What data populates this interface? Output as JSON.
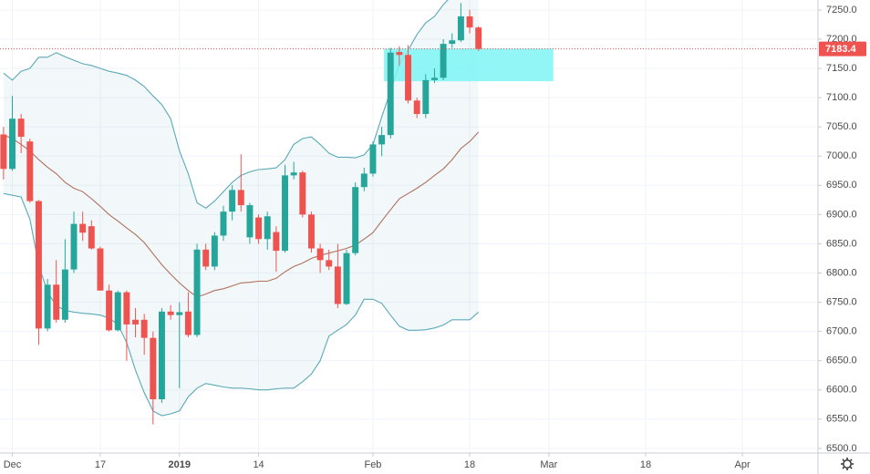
{
  "chart_data": {
    "type": "candlestick",
    "x": [
      0,
      1,
      2,
      3,
      4,
      5,
      6,
      7,
      8,
      9,
      10,
      11,
      12,
      13,
      14,
      15,
      16,
      17,
      18,
      19,
      20,
      21,
      22,
      23,
      24,
      25,
      26,
      27,
      28,
      29,
      30,
      31,
      32,
      33,
      34,
      35,
      36,
      37,
      38,
      39,
      40,
      41,
      42,
      43,
      44,
      45,
      46,
      47,
      48,
      49,
      50,
      51,
      52,
      53,
      54
    ],
    "open": [
      7037,
      6978,
      7064,
      7025,
      6923,
      6705,
      6780,
      6720,
      6806,
      6884,
      6880,
      6842,
      6770,
      6702,
      6767,
      6720,
      6720,
      6689,
      6584,
      6734,
      6728,
      6734,
      6694,
      6840,
      6811,
      6864,
      6905,
      6942,
      6861,
      6895,
      6858,
      6870,
      6838,
      6967,
      6972,
      6900,
      6842,
      6822,
      6811,
      6747,
      6834,
      6947,
      6970,
      7020,
      7036,
      7178,
      7173,
      7095,
      7072,
      7130,
      7134,
      7192,
      7198,
      7239,
      7220
    ],
    "high": [
      7050,
      7103,
      7072,
      7030,
      6925,
      6790,
      6822,
      6858,
      6905,
      6905,
      6890,
      6845,
      6780,
      6770,
      6770,
      6740,
      6730,
      6700,
      6740,
      6745,
      6750,
      6767,
      6850,
      6850,
      6870,
      6915,
      6950,
      7003,
      6920,
      6900,
      6905,
      6880,
      6985,
      6990,
      6975,
      6905,
      6850,
      6840,
      6850,
      6840,
      6955,
      6980,
      7025,
      7050,
      7185,
      7188,
      7190,
      7100,
      7140,
      7150,
      7200,
      7210,
      7262,
      7250,
      7222
    ],
    "low": [
      6960,
      6975,
      7005,
      6920,
      6677,
      6700,
      6715,
      6715,
      6800,
      6855,
      6840,
      6770,
      6700,
      6700,
      6650,
      6690,
      6660,
      6541,
      6578,
      6720,
      6603,
      6690,
      6690,
      6805,
      6805,
      6855,
      6890,
      6905,
      6850,
      6850,
      6840,
      6802,
      6835,
      6960,
      6895,
      6835,
      6800,
      6805,
      6740,
      6745,
      6830,
      6940,
      6965,
      7000,
      7030,
      7155,
      7090,
      7065,
      7065,
      7125,
      7130,
      7185,
      7195,
      7210,
      7180
    ],
    "close": [
      6978,
      7064,
      7033,
      6923,
      6705,
      6780,
      6720,
      6806,
      6884,
      6869,
      6842,
      6770,
      6702,
      6767,
      6712,
      6712,
      6689,
      6584,
      6734,
      6728,
      6733,
      6694,
      6840,
      6811,
      6864,
      6905,
      6942,
      6916,
      6916,
      6858,
      6897,
      6838,
      6967,
      6972,
      6900,
      6842,
      6822,
      6811,
      6747,
      6834,
      6947,
      6970,
      7020,
      7036,
      7177,
      7173,
      7095,
      7072,
      7130,
      7134,
      7192,
      7198,
      7239,
      7220,
      7183.4
    ],
    "up_color": "#26a69a",
    "down_color": "#ef5350",
    "bands": {
      "upper": [
        7142,
        7130,
        7145,
        7150,
        7169,
        7169,
        7177,
        7170,
        7164,
        7158,
        7155,
        7150,
        7145,
        7142,
        7138,
        7130,
        7119,
        7103,
        7088,
        7064,
        7009,
        6970,
        6920,
        6911,
        6923,
        6939,
        6955,
        6967,
        6973,
        6977,
        6978,
        6980,
        6994,
        7020,
        7030,
        7033,
        7020,
        7005,
        6998,
        6998,
        6997,
        7002,
        7020,
        7067,
        7111,
        7158,
        7181,
        7208,
        7228,
        7239,
        7259,
        7275,
        7291,
        7302,
        7311
      ],
      "middle": [
        7036,
        7030,
        7020,
        7009,
        6994,
        6981,
        6970,
        6955,
        6945,
        6939,
        6927,
        6914,
        6900,
        6889,
        6877,
        6866,
        6852,
        6833,
        6814,
        6798,
        6783,
        6770,
        6759,
        6764,
        6770,
        6773,
        6778,
        6783,
        6784,
        6786,
        6786,
        6791,
        6802,
        6811,
        6817,
        6825,
        6830,
        6834,
        6838,
        6842,
        6848,
        6858,
        6869,
        6889,
        6908,
        6927,
        6936,
        6945,
        6955,
        6967,
        6978,
        6994,
        7013,
        7025,
        7041
      ],
      "lower": [
        6936,
        6933,
        6930,
        6892,
        6814,
        6767,
        6744,
        6736,
        6733,
        6731,
        6730,
        6728,
        6723,
        6712,
        6681,
        6634,
        6595,
        6564,
        6556,
        6559,
        6564,
        6588,
        6603,
        6611,
        6608,
        6605,
        6603,
        6603,
        6602,
        6600,
        6600,
        6602,
        6603,
        6603,
        6614,
        6627,
        6650,
        6692,
        6702,
        6712,
        6728,
        6755,
        6755,
        6748,
        6728,
        6709,
        6702,
        6702,
        6703,
        6706,
        6711,
        6720,
        6720,
        6720,
        6733
      ],
      "band_color": "#5aa9b8",
      "middle_color": "#b0705e"
    },
    "highlight_box": {
      "x0": 43.25,
      "x1": 62.5,
      "y0": 7128,
      "y1": 7184,
      "color": "#7ff5f5"
    },
    "last_price": 7183.4,
    "last_price_color": "#ef5350",
    "xlim": [
      -0.4,
      92.6
    ],
    "xticks": [
      {
        "value": 1,
        "label": "Dec"
      },
      {
        "value": 11,
        "label": "17"
      },
      {
        "value": 20,
        "label": "2019"
      },
      {
        "value": 29,
        "label": "14"
      },
      {
        "value": 42,
        "label": "Feb"
      },
      {
        "value": 53,
        "label": "18"
      },
      {
        "value": 62,
        "label": "Mar"
      },
      {
        "value": 73,
        "label": "18"
      },
      {
        "value": 84,
        "label": "Apr"
      }
    ],
    "ylim": [
      6492,
      7267
    ],
    "yticks": [
      {
        "value": 6500,
        "label": "6500.0"
      },
      {
        "value": 6550,
        "label": "6550.0"
      },
      {
        "value": 6600,
        "label": "6600.0"
      },
      {
        "value": 6650,
        "label": "6650.0"
      },
      {
        "value": 6700,
        "label": "6700.0"
      },
      {
        "value": 6750,
        "label": "6750.0"
      },
      {
        "value": 6800,
        "label": "6800.0"
      },
      {
        "value": 6850,
        "label": "6850.0"
      },
      {
        "value": 6900,
        "label": "6900.0"
      },
      {
        "value": 6950,
        "label": "6950.0"
      },
      {
        "value": 7000,
        "label": "7000.0"
      },
      {
        "value": 7050,
        "label": "7050.0"
      },
      {
        "value": 7100,
        "label": "7100.0"
      },
      {
        "value": 7150,
        "label": "7150.0"
      },
      {
        "value": 7200,
        "label": "7200.0"
      },
      {
        "value": 7250,
        "label": "7250.0"
      }
    ],
    "grid": true
  }
}
